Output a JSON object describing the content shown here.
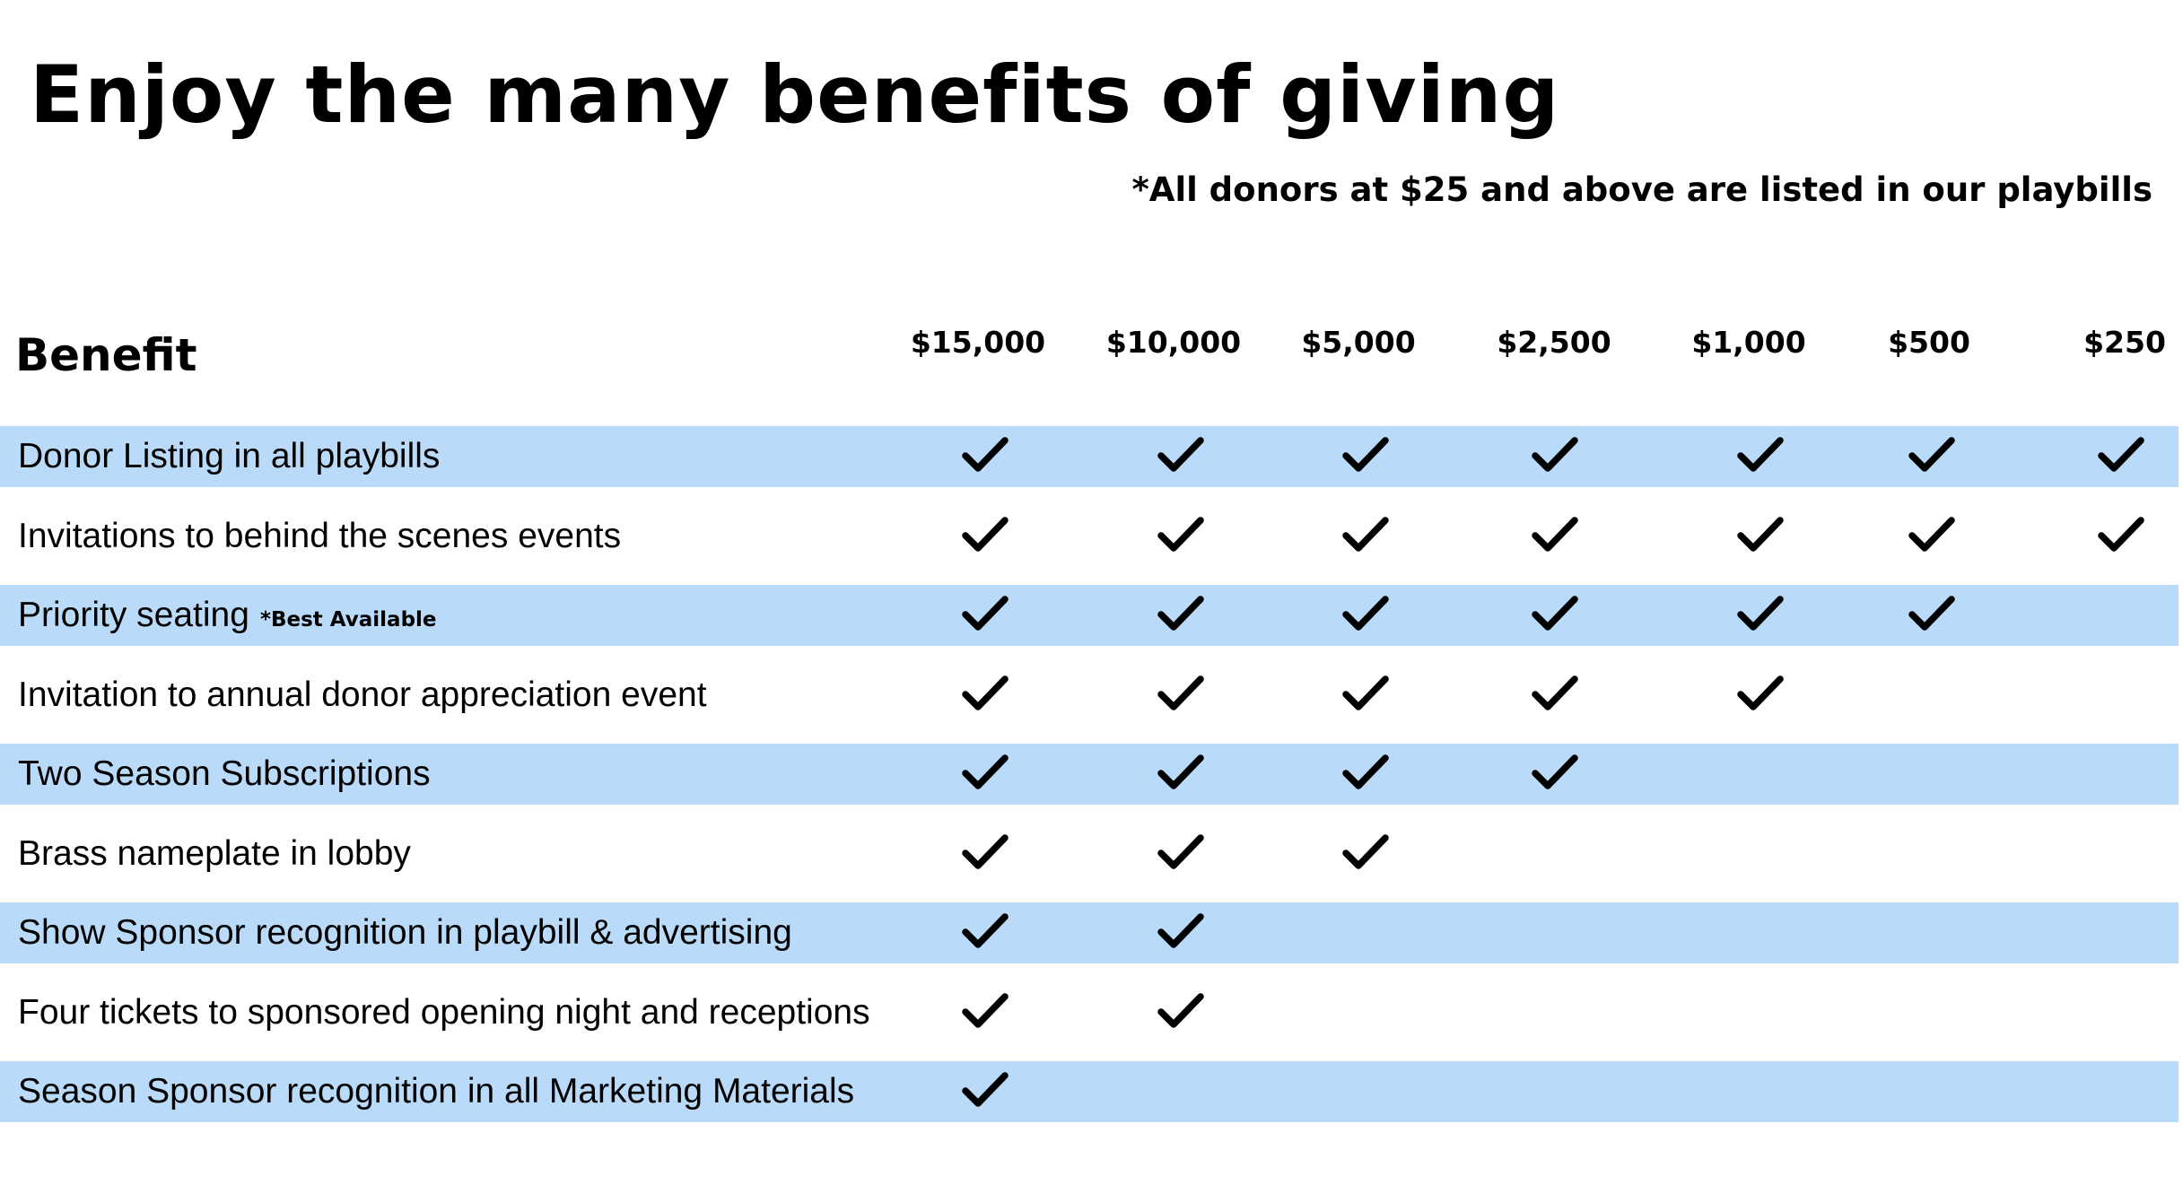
{
  "title": "Enjoy the many benefits of giving",
  "note": "*All donors at $25 and above are listed in our playbills",
  "benefit_heading": "Benefit",
  "tiers": [
    "$15,000",
    "$10,000",
    "$5,000",
    "$2,500",
    "$1,000",
    "$500",
    "$250"
  ],
  "row_colors": {
    "shaded": "#b9dbf9",
    "plain": "#ffffff"
  },
  "check_icon": "check-icon",
  "benefits": [
    {
      "label": "Donor Listing in all playbills",
      "note": "",
      "included": [
        true,
        true,
        true,
        true,
        true,
        true,
        true
      ]
    },
    {
      "label": "Invitations to behind the scenes events",
      "note": "",
      "included": [
        true,
        true,
        true,
        true,
        true,
        true,
        true
      ]
    },
    {
      "label": "Priority seating",
      "note": "*Best Available",
      "included": [
        true,
        true,
        true,
        true,
        true,
        true,
        false
      ]
    },
    {
      "label": "Invitation to annual donor appreciation event",
      "note": "",
      "included": [
        true,
        true,
        true,
        true,
        true,
        false,
        false
      ]
    },
    {
      "label": "Two Season Subscriptions",
      "note": "",
      "included": [
        true,
        true,
        true,
        true,
        false,
        false,
        false
      ]
    },
    {
      "label": "Brass nameplate in lobby",
      "note": "",
      "included": [
        true,
        true,
        true,
        false,
        false,
        false,
        false
      ]
    },
    {
      "label": "Show Sponsor recognition in playbill & advertising",
      "note": "",
      "included": [
        true,
        true,
        false,
        false,
        false,
        false,
        false
      ]
    },
    {
      "label": "Four tickets to sponsored opening night and receptions",
      "note": "",
      "included": [
        true,
        true,
        false,
        false,
        false,
        false,
        false
      ]
    },
    {
      "label": "Season Sponsor recognition in all Marketing Materials",
      "note": "",
      "included": [
        true,
        false,
        false,
        false,
        false,
        false,
        false
      ]
    }
  ]
}
